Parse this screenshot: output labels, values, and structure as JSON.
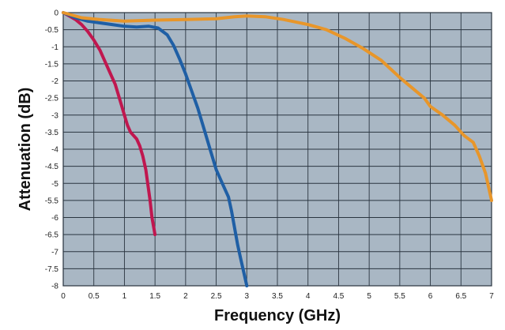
{
  "chart_data": {
    "type": "line",
    "title": "",
    "xlabel": "Frequency (GHz)",
    "ylabel": "Attenuation (dB)",
    "xlim": [
      0,
      7
    ],
    "ylim": [
      -8,
      0
    ],
    "grid": true,
    "x_ticks": [
      {
        "value": 0,
        "label": "0"
      },
      {
        "value": 0.5,
        "label": "0.5"
      },
      {
        "value": 1,
        "label": "1"
      },
      {
        "value": 1.5,
        "label": "1.5"
      },
      {
        "value": 2,
        "label": "2"
      },
      {
        "value": 2.5,
        "label": "2.5"
      },
      {
        "value": 3,
        "label": "3"
      },
      {
        "value": 3.5,
        "label": "3.5"
      },
      {
        "value": 4,
        "label": "4"
      },
      {
        "value": 4.5,
        "label": "4.5"
      },
      {
        "value": 5,
        "label": "5"
      },
      {
        "value": 5.5,
        "label": "5.5"
      },
      {
        "value": 6,
        "label": "6"
      },
      {
        "value": 6.5,
        "label": "6.5"
      },
      {
        "value": 7,
        "label": "7"
      }
    ],
    "y_ticks": [
      {
        "value": 0,
        "label": "0"
      },
      {
        "value": -0.5,
        "label": "-0.5"
      },
      {
        "value": -1,
        "label": "-1"
      },
      {
        "value": -1.5,
        "label": "-1.5"
      },
      {
        "value": -2,
        "label": "-2"
      },
      {
        "value": -2.5,
        "label": "-2.5"
      },
      {
        "value": -3,
        "label": "-3"
      },
      {
        "value": -3.5,
        "label": "-3.5"
      },
      {
        "value": -4,
        "label": "-4"
      },
      {
        "value": -4.5,
        "label": "-4.5"
      },
      {
        "value": -5,
        "label": "-5"
      },
      {
        "value": -5.5,
        "label": "-5.5"
      },
      {
        "value": -6,
        "label": "-6"
      },
      {
        "value": -6.5,
        "label": "-6.5"
      },
      {
        "value": -7,
        "label": "-7"
      },
      {
        "value": -7.5,
        "label": "-7.5"
      },
      {
        "value": -8,
        "label": "-8"
      }
    ],
    "series": [
      {
        "color": "#c0174f",
        "points": [
          [
            0,
            0
          ],
          [
            0.1,
            -0.1
          ],
          [
            0.2,
            -0.2
          ],
          [
            0.3,
            -0.35
          ],
          [
            0.4,
            -0.55
          ],
          [
            0.5,
            -0.8
          ],
          [
            0.6,
            -1.1
          ],
          [
            0.7,
            -1.5
          ],
          [
            0.8,
            -1.9
          ],
          [
            0.85,
            -2.1
          ],
          [
            0.9,
            -2.4
          ],
          [
            0.95,
            -2.7
          ],
          [
            1.0,
            -3.0
          ],
          [
            1.05,
            -3.3
          ],
          [
            1.1,
            -3.5
          ],
          [
            1.15,
            -3.6
          ],
          [
            1.2,
            -3.7
          ],
          [
            1.25,
            -3.9
          ],
          [
            1.3,
            -4.2
          ],
          [
            1.35,
            -4.6
          ],
          [
            1.38,
            -5.0
          ],
          [
            1.42,
            -5.5
          ],
          [
            1.45,
            -6.0
          ],
          [
            1.5,
            -6.5
          ]
        ]
      },
      {
        "color": "#1f5fa5",
        "points": [
          [
            0,
            0
          ],
          [
            0.2,
            -0.15
          ],
          [
            0.4,
            -0.25
          ],
          [
            0.6,
            -0.3
          ],
          [
            0.8,
            -0.35
          ],
          [
            1.0,
            -0.4
          ],
          [
            1.2,
            -0.42
          ],
          [
            1.4,
            -0.4
          ],
          [
            1.55,
            -0.45
          ],
          [
            1.7,
            -0.65
          ],
          [
            1.8,
            -0.95
          ],
          [
            1.9,
            -1.35
          ],
          [
            2.0,
            -1.8
          ],
          [
            2.1,
            -2.3
          ],
          [
            2.2,
            -2.8
          ],
          [
            2.3,
            -3.4
          ],
          [
            2.4,
            -4.0
          ],
          [
            2.5,
            -4.6
          ],
          [
            2.6,
            -5.0
          ],
          [
            2.7,
            -5.4
          ],
          [
            2.75,
            -5.8
          ],
          [
            2.8,
            -6.3
          ],
          [
            2.85,
            -6.8
          ],
          [
            2.9,
            -7.2
          ],
          [
            2.95,
            -7.6
          ],
          [
            3.0,
            -8.0
          ]
        ]
      },
      {
        "color": "#e8962a",
        "points": [
          [
            0,
            0
          ],
          [
            0.3,
            -0.15
          ],
          [
            0.6,
            -0.2
          ],
          [
            1.0,
            -0.25
          ],
          [
            1.5,
            -0.22
          ],
          [
            2.0,
            -0.2
          ],
          [
            2.5,
            -0.18
          ],
          [
            2.8,
            -0.12
          ],
          [
            3.0,
            -0.1
          ],
          [
            3.3,
            -0.12
          ],
          [
            3.6,
            -0.2
          ],
          [
            4.0,
            -0.35
          ],
          [
            4.3,
            -0.5
          ],
          [
            4.6,
            -0.75
          ],
          [
            4.9,
            -1.05
          ],
          [
            5.2,
            -1.4
          ],
          [
            5.5,
            -1.9
          ],
          [
            5.7,
            -2.2
          ],
          [
            5.9,
            -2.5
          ],
          [
            6.0,
            -2.75
          ],
          [
            6.2,
            -3.0
          ],
          [
            6.4,
            -3.3
          ],
          [
            6.55,
            -3.6
          ],
          [
            6.7,
            -3.8
          ],
          [
            6.8,
            -4.2
          ],
          [
            6.9,
            -4.7
          ],
          [
            7.0,
            -5.5
          ]
        ]
      }
    ]
  }
}
